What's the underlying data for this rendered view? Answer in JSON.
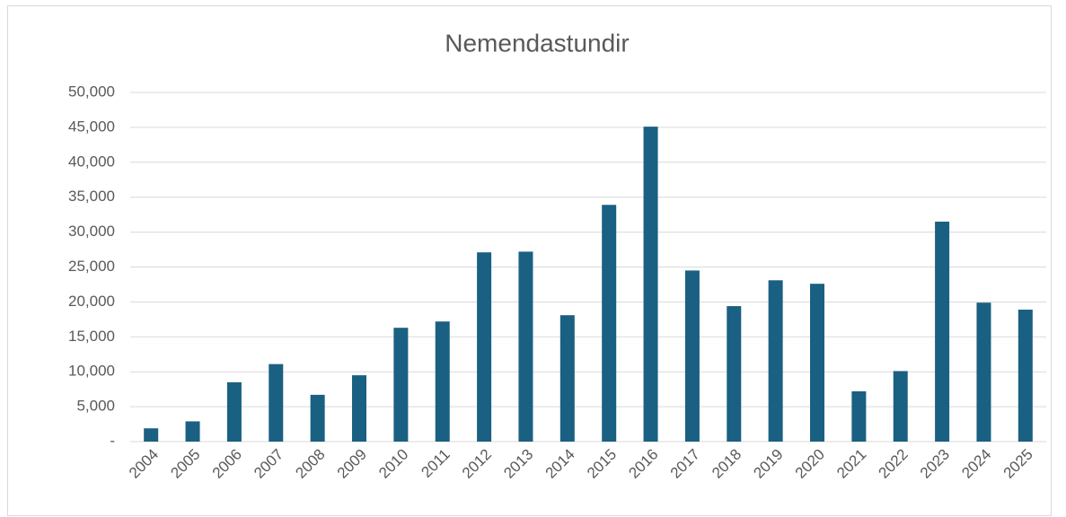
{
  "chart_data": {
    "type": "bar",
    "title": "Nemendastundir",
    "categories": [
      "2004",
      "2005",
      "2006",
      "2007",
      "2008",
      "2009",
      "2010",
      "2011",
      "2012",
      "2013",
      "2014",
      "2015",
      "2016",
      "2017",
      "2018",
      "2019",
      "2020",
      "2021",
      "2022",
      "2023",
      "2024",
      "2025"
    ],
    "values": [
      1900,
      2900,
      8500,
      11100,
      6700,
      9500,
      16300,
      17200,
      27100,
      27200,
      18100,
      33900,
      45100,
      24500,
      19400,
      23100,
      22600,
      7200,
      10100,
      31500,
      19900,
      18900
    ],
    "color": "#1a6082",
    "ylim": [
      0,
      50000
    ],
    "yticks": [
      {
        "value": 0,
        "label": "-"
      },
      {
        "value": 5000,
        "label": "5,000"
      },
      {
        "value": 10000,
        "label": "10,000"
      },
      {
        "value": 15000,
        "label": "15,000"
      },
      {
        "value": 20000,
        "label": "20,000"
      },
      {
        "value": 25000,
        "label": "25,000"
      },
      {
        "value": 30000,
        "label": "30,000"
      },
      {
        "value": 35000,
        "label": "35,000"
      },
      {
        "value": 40000,
        "label": "40,000"
      },
      {
        "value": 45000,
        "label": "45,000"
      },
      {
        "value": 50000,
        "label": "50,000"
      }
    ],
    "grid": true
  }
}
